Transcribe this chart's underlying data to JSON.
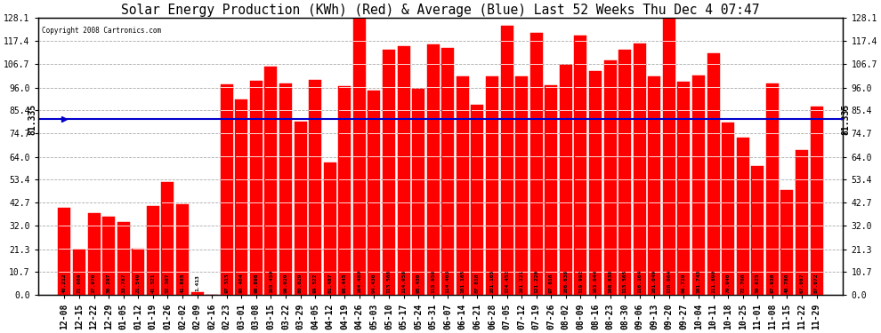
{
  "title": "Solar Energy Production (KWh) (Red) & Average (Blue) Last 52 Weeks Thu Dec 4 07:47",
  "copyright": "Copyright 2008 Cartronics.com",
  "average": 81.335,
  "bar_color": "#ff0000",
  "avg_line_color": "#0000cc",
  "background_color": "#ffffff",
  "plot_bg_color": "#ffffff",
  "grid_color": "#aaaaaa",
  "categories": [
    "12-08",
    "12-15",
    "12-22",
    "12-29",
    "01-05",
    "01-12",
    "01-19",
    "01-26",
    "02-02",
    "02-09",
    "02-16",
    "02-23",
    "03-01",
    "03-08",
    "03-15",
    "03-22",
    "03-29",
    "04-05",
    "04-12",
    "04-19",
    "04-26",
    "05-03",
    "05-10",
    "05-17",
    "05-24",
    "05-31",
    "06-07",
    "06-14",
    "06-21",
    "06-28",
    "07-05",
    "07-12",
    "07-19",
    "07-26",
    "08-02",
    "08-09",
    "08-16",
    "08-23",
    "08-30",
    "09-06",
    "09-13",
    "09-20",
    "09-27",
    "10-04",
    "10-11",
    "10-18",
    "10-25",
    "11-01",
    "11-08",
    "11-15",
    "11-22",
    "11-29"
  ],
  "values": [
    40.212,
    21.009,
    37.97,
    36.297,
    33.787,
    21.549,
    41.321,
    52.307,
    41.885,
    1.413,
    0.0,
    97.313,
    90.404,
    98.896,
    105.459,
    98.029,
    80.029,
    99.522,
    61.487,
    96.445,
    164.489,
    94.43,
    113.568,
    114.958,
    95.43,
    115.958,
    114.403,
    101.165,
    87.818,
    101.165,
    124.452,
    101.221,
    121.22,
    97.016,
    106.638,
    119.992,
    103.644,
    108.638,
    113.565,
    116.164,
    101.049,
    128.064,
    98.729,
    101.743,
    111.89,
    79.94,
    72.76,
    59.625,
    97.93,
    48.78,
    67.087,
    87.072
  ],
  "ylim": [
    0,
    128.1
  ],
  "yticks": [
    0.0,
    10.7,
    21.3,
    32.0,
    42.7,
    53.4,
    64.0,
    74.7,
    85.4,
    96.0,
    106.7,
    117.4,
    128.1
  ],
  "avg_label": "81.335",
  "title_fontsize": 10.5,
  "tick_fontsize": 7
}
